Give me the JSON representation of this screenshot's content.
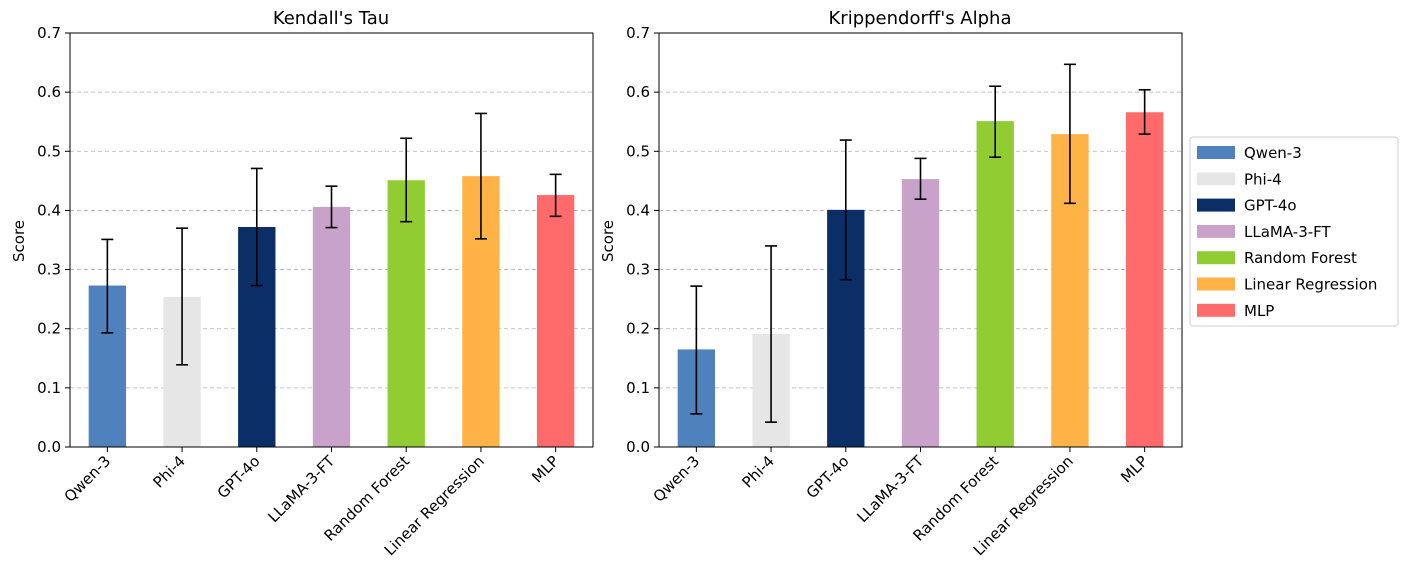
{
  "chart_data": [
    {
      "type": "bar",
      "title": "Kendall's Tau",
      "ylabel": "Score",
      "xlabel": "",
      "ylim": [
        0,
        0.7
      ],
      "yticks": [
        "0.0",
        "0.1",
        "0.2",
        "0.3",
        "0.4",
        "0.5",
        "0.6",
        "0.7"
      ],
      "grid": "y-dashed",
      "categories": [
        "Qwen-3",
        "Phi-4",
        "GPT-4o",
        "LLaMA-3-FT",
        "Random Forest",
        "Linear Regression",
        "MLP"
      ],
      "values": [
        0.273,
        0.254,
        0.372,
        0.406,
        0.451,
        0.458,
        0.426
      ],
      "error_low": [
        0.193,
        0.139,
        0.273,
        0.371,
        0.381,
        0.352,
        0.39
      ],
      "error_high": [
        0.351,
        0.37,
        0.471,
        0.441,
        0.522,
        0.564,
        0.461
      ]
    },
    {
      "type": "bar",
      "title": "Krippendorff's Alpha",
      "ylabel": "Score",
      "xlabel": "",
      "ylim": [
        0,
        0.7
      ],
      "yticks": [
        "0.0",
        "0.1",
        "0.2",
        "0.3",
        "0.4",
        "0.5",
        "0.6",
        "0.7"
      ],
      "grid": "y-dashed",
      "categories": [
        "Qwen-3",
        "Phi-4",
        "GPT-4o",
        "LLaMA-3-FT",
        "Random Forest",
        "Linear Regression",
        "MLP"
      ],
      "values": [
        0.165,
        0.191,
        0.401,
        0.453,
        0.551,
        0.529,
        0.566
      ],
      "error_low": [
        0.056,
        0.042,
        0.283,
        0.419,
        0.49,
        0.412,
        0.529
      ],
      "error_high": [
        0.272,
        0.34,
        0.519,
        0.488,
        0.61,
        0.647,
        0.604
      ]
    }
  ],
  "colors": [
    "#4f81bd",
    "#e6e6e6",
    "#0b2e67",
    "#c8a2c8",
    "#91cd32",
    "#ffb347",
    "#ff6b6b"
  ],
  "legend": {
    "placement": "right-center",
    "entries": [
      "Qwen-3",
      "Phi-4",
      "GPT-4o",
      "LLaMA-3-FT",
      "Random Forest",
      "Linear Regression",
      "MLP"
    ]
  }
}
